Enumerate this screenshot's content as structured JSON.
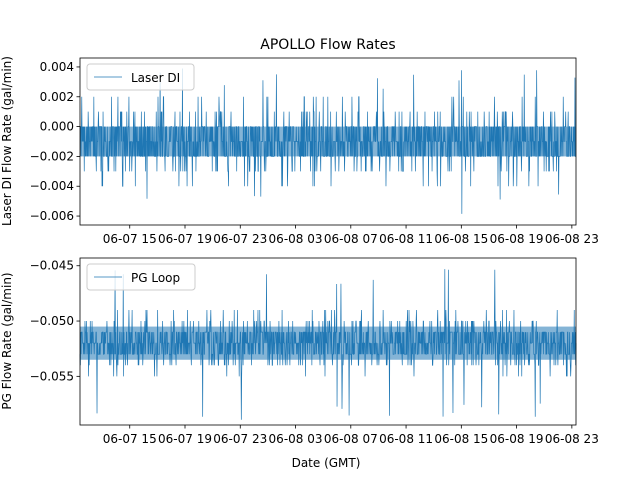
{
  "chart_data": [
    {
      "type": "line",
      "title": "APOLLO Flow Rates",
      "ylabel": "Laser DI Flow Rate (gal/min)",
      "xlabel": "",
      "ylim": [
        -0.0066,
        0.0046
      ],
      "yticks": [
        0.004,
        0.002,
        0.0,
        -0.002,
        -0.004,
        -0.006
      ],
      "ytick_labels": [
        "0.004",
        "0.002",
        "0.000",
        "−0.002",
        "−0.004",
        "−0.006"
      ],
      "xticks": [
        "06-07 15",
        "06-07 19",
        "06-07 23",
        "06-08 03",
        "06-08 07",
        "06-08 11",
        "06-08 15",
        "06-08 19",
        "06-08 23"
      ],
      "xtick_hours": [
        15,
        19,
        23,
        27,
        31,
        35,
        39,
        43,
        47
      ],
      "xlim_hours": [
        11.4,
        47.3
      ],
      "series": [
        {
          "name": "Laser DI",
          "color": "#1f77b4",
          "baseline": -0.001,
          "step": 0.001,
          "band": [
            -0.002,
            0.0
          ],
          "min": -0.006,
          "max": 0.004
        }
      ],
      "legend": "upper left"
    },
    {
      "type": "line",
      "title": "",
      "ylabel": "PG Flow Rate (gal/min)",
      "xlabel": "Date (GMT)",
      "ylim": [
        -0.0594,
        -0.0443
      ],
      "yticks": [
        -0.045,
        -0.05,
        -0.055
      ],
      "ytick_labels": [
        "−0.045",
        "−0.050",
        "−0.055"
      ],
      "xticks": [
        "06-07 15",
        "06-07 19",
        "06-07 23",
        "06-08 03",
        "06-08 07",
        "06-08 11",
        "06-08 15",
        "06-08 19",
        "06-08 23"
      ],
      "xtick_hours": [
        15,
        19,
        23,
        27,
        31,
        35,
        39,
        43,
        47
      ],
      "xlim_hours": [
        11.4,
        47.3
      ],
      "series": [
        {
          "name": "PG Loop",
          "color": "#1f77b4",
          "baseline": -0.052,
          "step": 0.001,
          "band": [
            -0.0535,
            -0.0505
          ],
          "min": -0.059,
          "max": -0.045
        }
      ],
      "legend": "upper left"
    }
  ]
}
